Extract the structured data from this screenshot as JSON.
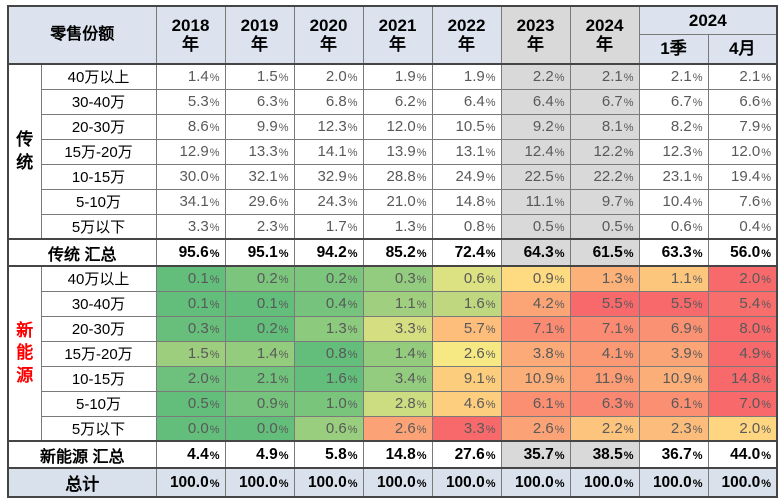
{
  "chart_data": {
    "type": "table",
    "title": "零售份额",
    "columns": [
      "2018年",
      "2019年",
      "2020年",
      "2021年",
      "2022年",
      "2023年",
      "2024年",
      "2024 1季",
      "2024 4月"
    ],
    "year_cols": [
      {
        "label": "2018年",
        "line1": "2018",
        "line2": "年",
        "shaded": false
      },
      {
        "label": "2019年",
        "line1": "2019",
        "line2": "年",
        "shaded": false
      },
      {
        "label": "2020年",
        "line1": "2020",
        "line2": "年",
        "shaded": false
      },
      {
        "label": "2021年",
        "line1": "2021",
        "line2": "年",
        "shaded": false
      },
      {
        "label": "2022年",
        "line1": "2022",
        "line2": "年",
        "shaded": false
      },
      {
        "label": "2023年",
        "line1": "2023",
        "line2": "年",
        "shaded": true
      },
      {
        "label": "2024年",
        "line1": "2024",
        "line2": "年",
        "shaded": true
      }
    ],
    "group_2024": {
      "label": "2024",
      "subcolumns": [
        "1季",
        "4月"
      ]
    },
    "sections": [
      {
        "key": "traditional",
        "name": "传统",
        "label_color": "#000000",
        "heatmap": false,
        "rows": [
          {
            "label": "40万以上",
            "values": [
              1.4,
              1.5,
              2.0,
              1.9,
              1.9,
              2.2,
              2.1,
              2.1,
              2.1
            ]
          },
          {
            "label": "30-40万",
            "values": [
              5.3,
              6.3,
              6.8,
              6.2,
              6.4,
              6.4,
              6.7,
              6.7,
              6.6
            ]
          },
          {
            "label": "20-30万",
            "values": [
              8.6,
              9.9,
              12.3,
              12.0,
              10.5,
              9.2,
              8.1,
              8.2,
              7.9
            ]
          },
          {
            "label": "15万-20万",
            "values": [
              12.9,
              13.3,
              14.1,
              13.9,
              13.1,
              12.4,
              12.2,
              12.3,
              12.0
            ]
          },
          {
            "label": "10-15万",
            "values": [
              30.0,
              32.1,
              32.9,
              28.8,
              24.9,
              22.5,
              22.2,
              23.1,
              19.4
            ]
          },
          {
            "label": "5-10万",
            "values": [
              34.1,
              29.6,
              24.3,
              21.0,
              14.8,
              11.1,
              9.7,
              10.4,
              7.6
            ]
          },
          {
            "label": "5万以下",
            "values": [
              3.3,
              2.3,
              1.7,
              1.3,
              0.8,
              0.5,
              0.5,
              0.6,
              0.4
            ]
          }
        ],
        "summary": {
          "label": "传统 汇总",
          "values": [
            95.6,
            95.1,
            94.2,
            85.2,
            72.4,
            64.3,
            61.5,
            63.3,
            56.0
          ]
        }
      },
      {
        "key": "new-energy",
        "name": "新能源",
        "label_color": "#fe0000",
        "heatmap": true,
        "rows": [
          {
            "label": "40万以上",
            "values": [
              0.1,
              0.2,
              0.2,
              0.3,
              0.6,
              0.9,
              1.3,
              1.1,
              2.0
            ]
          },
          {
            "label": "30-40万",
            "values": [
              0.1,
              0.1,
              0.4,
              1.1,
              1.6,
              4.2,
              5.5,
              5.5,
              5.4
            ]
          },
          {
            "label": "20-30万",
            "values": [
              0.3,
              0.2,
              1.3,
              3.3,
              5.7,
              7.1,
              7.1,
              6.9,
              8.0
            ]
          },
          {
            "label": "15万-20万",
            "values": [
              1.5,
              1.4,
              0.8,
              1.4,
              2.6,
              3.8,
              4.1,
              3.9,
              4.9
            ]
          },
          {
            "label": "10-15万",
            "values": [
              2.0,
              2.1,
              1.6,
              3.4,
              9.1,
              10.9,
              11.9,
              10.9,
              14.8
            ]
          },
          {
            "label": "5-10万",
            "values": [
              0.5,
              0.9,
              1.0,
              2.8,
              4.6,
              6.1,
              6.3,
              6.1,
              7.0
            ]
          },
          {
            "label": "5万以下",
            "values": [
              0.0,
              0.0,
              0.6,
              2.6,
              3.3,
              2.6,
              2.2,
              2.3,
              2.0
            ]
          }
        ],
        "summary": {
          "label": "新能源 汇总",
          "values": [
            4.4,
            4.9,
            5.8,
            14.8,
            27.6,
            35.7,
            38.5,
            36.7,
            44.0
          ]
        }
      }
    ],
    "total_row": {
      "label": "总计",
      "values": [
        100.0,
        100.0,
        100.0,
        100.0,
        100.0,
        100.0,
        100.0,
        100.0,
        100.0
      ]
    },
    "shaded_column_indices": [
      5,
      6
    ]
  },
  "colors": {
    "header_bg": "#dce3ef",
    "total_bg": "#d9e1ec",
    "shaded_bg": "#d9d9d9",
    "heat_green": "#63be7b",
    "heat_yellow": "#ffeb84",
    "heat_red": "#f8696b",
    "value_text": "#595959",
    "section_traditional_color": "#000000",
    "section_new_energy_color": "#fe0000"
  }
}
